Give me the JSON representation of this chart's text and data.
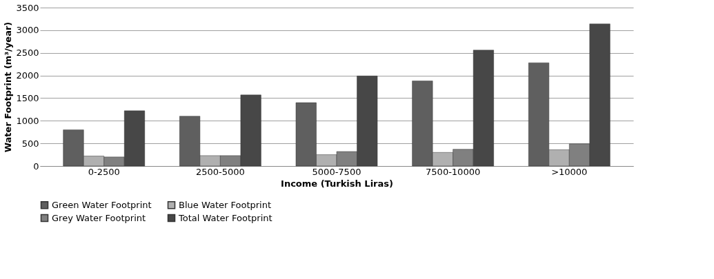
{
  "chart_data": {
    "type": "bar",
    "xlabel": "Income (Turkish Liras)",
    "ylabel": "Water Footprint (m³/year)",
    "categories": [
      "0-2500",
      "2500-5000",
      "5000-7500",
      "7500-10000",
      ">10000"
    ],
    "series": [
      {
        "name": "Green Water Footprint",
        "color": "#5f5f5f",
        "values": [
          800,
          1100,
          1400,
          1880,
          2280
        ]
      },
      {
        "name": "Blue Water Footprint",
        "color": "#b0b0b0",
        "values": [
          220,
          230,
          250,
          300,
          360
        ]
      },
      {
        "name": "Grey Water Footprint",
        "color": "#808080",
        "values": [
          200,
          230,
          320,
          370,
          490
        ]
      },
      {
        "name": "Total Water Footprint",
        "color": "#474747",
        "values": [
          1220,
          1570,
          1990,
          2560,
          3140
        ]
      }
    ],
    "ylim": [
      0,
      3500
    ],
    "yticks": [
      0,
      500,
      1000,
      1500,
      2000,
      2500,
      3000,
      3500
    ],
    "grid": "y",
    "legend": "bottom"
  }
}
